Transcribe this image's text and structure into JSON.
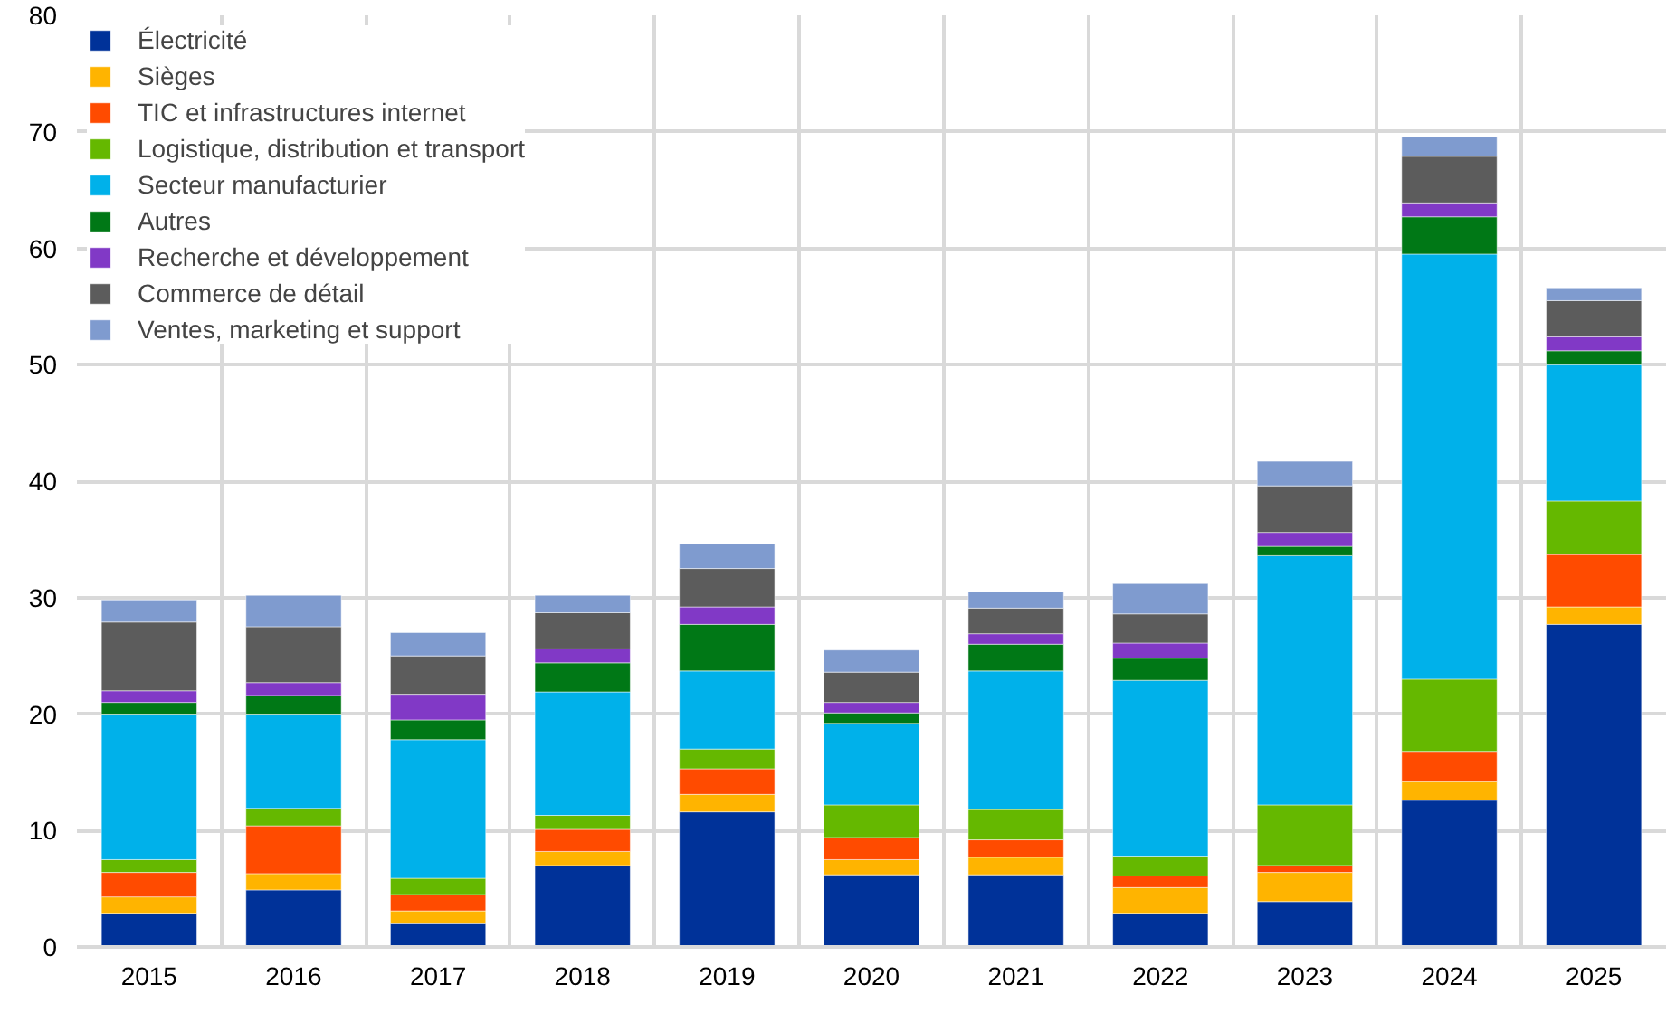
{
  "chart_data": {
    "type": "bar",
    "stacked": true,
    "categories": [
      "2015",
      "2016",
      "2017",
      "2018",
      "2019",
      "2020",
      "2021",
      "2022",
      "2023",
      "2024",
      "2025"
    ],
    "series": [
      {
        "name": "Électricité",
        "color": "#003299",
        "values": [
          2.9,
          4.9,
          2.0,
          7.0,
          11.6,
          6.2,
          6.2,
          2.9,
          3.9,
          12.6,
          27.7
        ]
      },
      {
        "name": "Sièges",
        "color": "#ffb400",
        "values": [
          1.4,
          1.4,
          1.1,
          1.2,
          1.5,
          1.3,
          1.5,
          2.2,
          2.5,
          1.6,
          1.5
        ]
      },
      {
        "name": "TIC et infrastructures internet",
        "color": "#ff4b00",
        "values": [
          2.1,
          4.1,
          1.4,
          1.9,
          2.2,
          1.9,
          1.5,
          1.0,
          0.6,
          2.6,
          4.5
        ]
      },
      {
        "name": "Logistique, distribution et transport",
        "color": "#65b800",
        "values": [
          1.1,
          1.5,
          1.4,
          1.2,
          1.7,
          2.8,
          2.6,
          1.7,
          5.2,
          6.2,
          4.6
        ]
      },
      {
        "name": "Secteur manufacturier",
        "color": "#00b1ea",
        "values": [
          12.5,
          8.1,
          11.9,
          10.6,
          6.7,
          7.0,
          11.9,
          15.1,
          21.4,
          36.5,
          11.7
        ]
      },
      {
        "name": "Autres",
        "color": "#007816",
        "values": [
          1.0,
          1.6,
          1.7,
          2.5,
          4.0,
          0.9,
          2.3,
          1.9,
          0.8,
          3.2,
          1.2
        ]
      },
      {
        "name": "Recherche et développement",
        "color": "#8139c6",
        "values": [
          1.0,
          1.1,
          2.2,
          1.2,
          1.5,
          0.9,
          0.9,
          1.3,
          1.2,
          1.2,
          1.2
        ]
      },
      {
        "name": "Commerce de détail",
        "color": "#5c5c5c",
        "values": [
          5.9,
          4.8,
          3.3,
          3.1,
          3.3,
          2.6,
          2.2,
          2.5,
          4.0,
          4.0,
          3.1
        ]
      },
      {
        "name": "Ventes, marketing et support",
        "color": "#7f9bcf",
        "values": [
          1.9,
          2.7,
          2.0,
          1.5,
          2.1,
          1.9,
          1.4,
          2.6,
          2.1,
          1.7,
          1.1
        ]
      }
    ],
    "ylim": [
      0,
      80
    ],
    "yticks": [
      0,
      10,
      20,
      30,
      40,
      50,
      60,
      70,
      80
    ],
    "grid": true,
    "legend": "top left"
  }
}
